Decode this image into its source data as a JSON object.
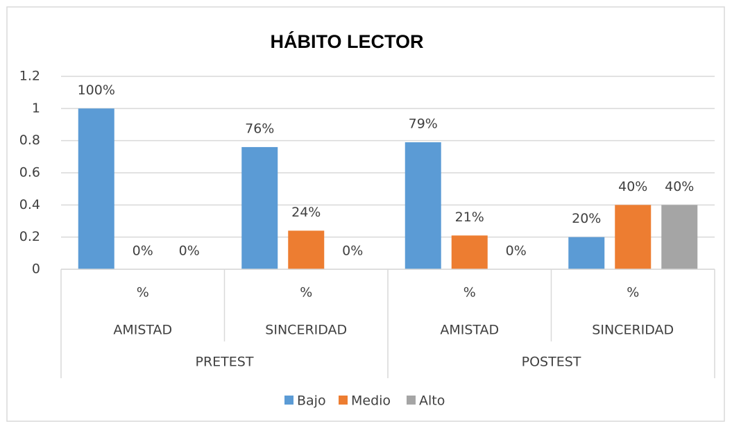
{
  "chart_data": {
    "type": "bar",
    "title": "HÁBITO LECTOR",
    "categories": [
      "%",
      "%",
      "%",
      "%"
    ],
    "subgroups": [
      "AMISTAD",
      "SINCERIDAD",
      "AMISTAD",
      "SINCERIDAD"
    ],
    "groups": [
      "PRETEST",
      "POSTEST"
    ],
    "series": [
      {
        "name": "Bajo",
        "color": "#5b9bd5",
        "values": [
          1,
          0.76,
          0.79,
          0.2
        ],
        "value_labels": [
          "100%",
          "76%",
          "79%",
          "20%"
        ]
      },
      {
        "name": "Medio",
        "color": "#ed7d31",
        "values": [
          0,
          0.24,
          0.21,
          0.4
        ],
        "value_labels": [
          "0%",
          "24%",
          "21%",
          "40%"
        ]
      },
      {
        "name": "Alto",
        "color": "#a5a5a5",
        "values": [
          0,
          0,
          0,
          0.4
        ],
        "value_labels": [
          "0%",
          "0%",
          "0%",
          "40%"
        ]
      }
    ],
    "ylim": [
      0,
      1.2
    ],
    "yticks": [
      0,
      0.2,
      0.4,
      0.6,
      0.8,
      1,
      1.2
    ],
    "grid": true,
    "legend": "bottom"
  }
}
